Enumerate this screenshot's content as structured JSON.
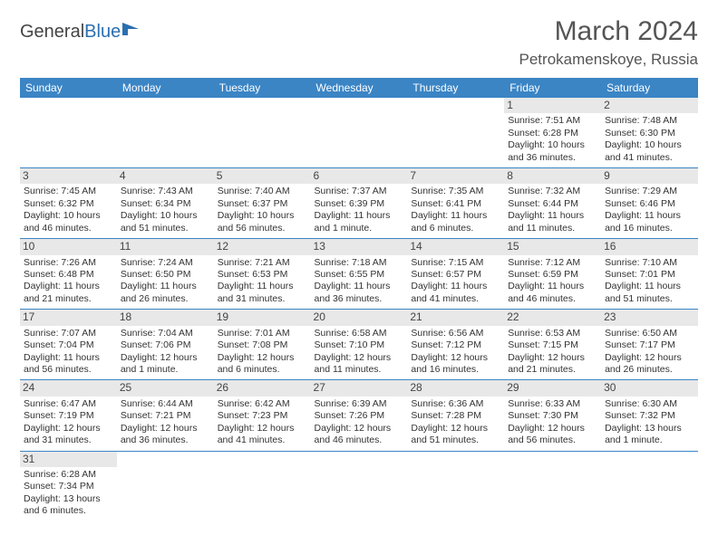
{
  "logo": {
    "word1": "General",
    "word2": "Blue"
  },
  "header": {
    "title": "March 2024",
    "location": "Petrokamenskoye, Russia"
  },
  "colors": {
    "header_bg": "#3b85c5",
    "header_fg": "#ffffff",
    "daynum_bg": "#e8e8e8",
    "border": "#3b85c5",
    "logo_blue": "#2a6fb0"
  },
  "weekdays": [
    "Sunday",
    "Monday",
    "Tuesday",
    "Wednesday",
    "Thursday",
    "Friday",
    "Saturday"
  ],
  "weeks": [
    [
      null,
      null,
      null,
      null,
      null,
      {
        "n": "1",
        "sunrise": "7:51 AM",
        "sunset": "6:28 PM",
        "dl": "10 hours and 36 minutes."
      },
      {
        "n": "2",
        "sunrise": "7:48 AM",
        "sunset": "6:30 PM",
        "dl": "10 hours and 41 minutes."
      }
    ],
    [
      {
        "n": "3",
        "sunrise": "7:45 AM",
        "sunset": "6:32 PM",
        "dl": "10 hours and 46 minutes."
      },
      {
        "n": "4",
        "sunrise": "7:43 AM",
        "sunset": "6:34 PM",
        "dl": "10 hours and 51 minutes."
      },
      {
        "n": "5",
        "sunrise": "7:40 AM",
        "sunset": "6:37 PM",
        "dl": "10 hours and 56 minutes."
      },
      {
        "n": "6",
        "sunrise": "7:37 AM",
        "sunset": "6:39 PM",
        "dl": "11 hours and 1 minute."
      },
      {
        "n": "7",
        "sunrise": "7:35 AM",
        "sunset": "6:41 PM",
        "dl": "11 hours and 6 minutes."
      },
      {
        "n": "8",
        "sunrise": "7:32 AM",
        "sunset": "6:44 PM",
        "dl": "11 hours and 11 minutes."
      },
      {
        "n": "9",
        "sunrise": "7:29 AM",
        "sunset": "6:46 PM",
        "dl": "11 hours and 16 minutes."
      }
    ],
    [
      {
        "n": "10",
        "sunrise": "7:26 AM",
        "sunset": "6:48 PM",
        "dl": "11 hours and 21 minutes."
      },
      {
        "n": "11",
        "sunrise": "7:24 AM",
        "sunset": "6:50 PM",
        "dl": "11 hours and 26 minutes."
      },
      {
        "n": "12",
        "sunrise": "7:21 AM",
        "sunset": "6:53 PM",
        "dl": "11 hours and 31 minutes."
      },
      {
        "n": "13",
        "sunrise": "7:18 AM",
        "sunset": "6:55 PM",
        "dl": "11 hours and 36 minutes."
      },
      {
        "n": "14",
        "sunrise": "7:15 AM",
        "sunset": "6:57 PM",
        "dl": "11 hours and 41 minutes."
      },
      {
        "n": "15",
        "sunrise": "7:12 AM",
        "sunset": "6:59 PM",
        "dl": "11 hours and 46 minutes."
      },
      {
        "n": "16",
        "sunrise": "7:10 AM",
        "sunset": "7:01 PM",
        "dl": "11 hours and 51 minutes."
      }
    ],
    [
      {
        "n": "17",
        "sunrise": "7:07 AM",
        "sunset": "7:04 PM",
        "dl": "11 hours and 56 minutes."
      },
      {
        "n": "18",
        "sunrise": "7:04 AM",
        "sunset": "7:06 PM",
        "dl": "12 hours and 1 minute."
      },
      {
        "n": "19",
        "sunrise": "7:01 AM",
        "sunset": "7:08 PM",
        "dl": "12 hours and 6 minutes."
      },
      {
        "n": "20",
        "sunrise": "6:58 AM",
        "sunset": "7:10 PM",
        "dl": "12 hours and 11 minutes."
      },
      {
        "n": "21",
        "sunrise": "6:56 AM",
        "sunset": "7:12 PM",
        "dl": "12 hours and 16 minutes."
      },
      {
        "n": "22",
        "sunrise": "6:53 AM",
        "sunset": "7:15 PM",
        "dl": "12 hours and 21 minutes."
      },
      {
        "n": "23",
        "sunrise": "6:50 AM",
        "sunset": "7:17 PM",
        "dl": "12 hours and 26 minutes."
      }
    ],
    [
      {
        "n": "24",
        "sunrise": "6:47 AM",
        "sunset": "7:19 PM",
        "dl": "12 hours and 31 minutes."
      },
      {
        "n": "25",
        "sunrise": "6:44 AM",
        "sunset": "7:21 PM",
        "dl": "12 hours and 36 minutes."
      },
      {
        "n": "26",
        "sunrise": "6:42 AM",
        "sunset": "7:23 PM",
        "dl": "12 hours and 41 minutes."
      },
      {
        "n": "27",
        "sunrise": "6:39 AM",
        "sunset": "7:26 PM",
        "dl": "12 hours and 46 minutes."
      },
      {
        "n": "28",
        "sunrise": "6:36 AM",
        "sunset": "7:28 PM",
        "dl": "12 hours and 51 minutes."
      },
      {
        "n": "29",
        "sunrise": "6:33 AM",
        "sunset": "7:30 PM",
        "dl": "12 hours and 56 minutes."
      },
      {
        "n": "30",
        "sunrise": "6:30 AM",
        "sunset": "7:32 PM",
        "dl": "13 hours and 1 minute."
      }
    ],
    [
      {
        "n": "31",
        "sunrise": "6:28 AM",
        "sunset": "7:34 PM",
        "dl": "13 hours and 6 minutes."
      },
      null,
      null,
      null,
      null,
      null,
      null
    ]
  ],
  "labels": {
    "sunrise": "Sunrise:",
    "sunset": "Sunset:",
    "daylight": "Daylight:"
  }
}
